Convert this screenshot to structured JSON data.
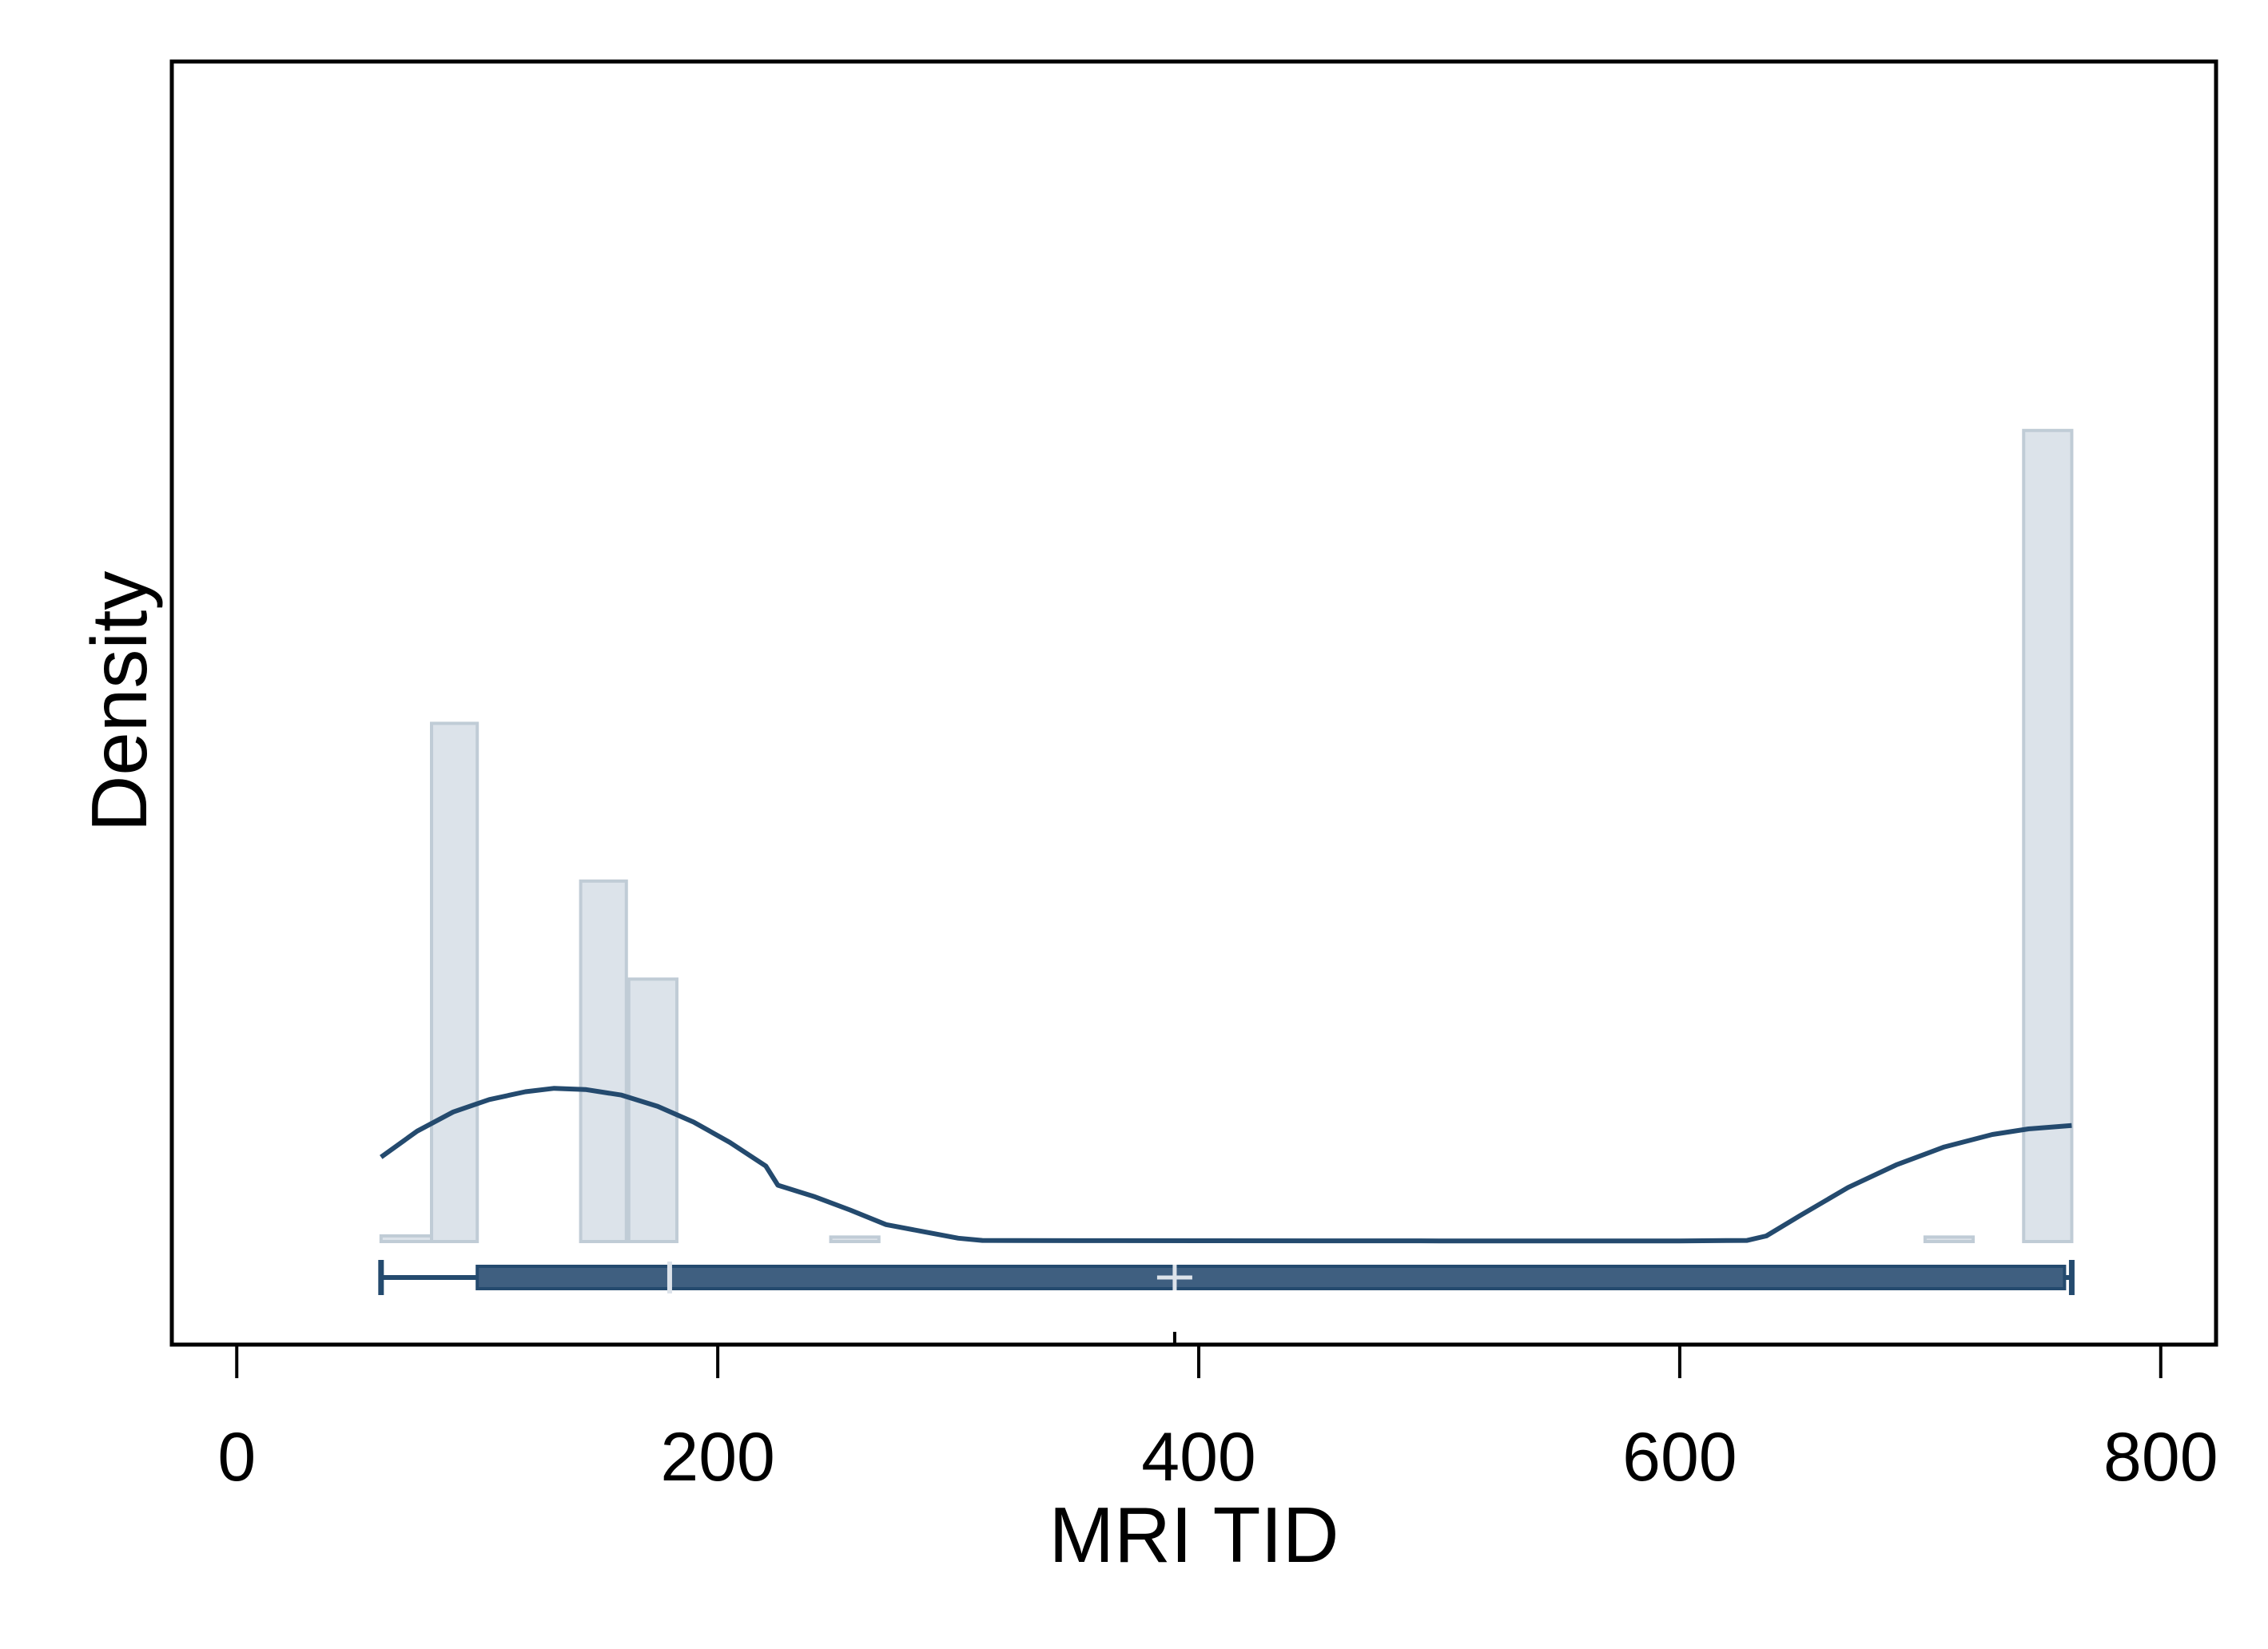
{
  "chart_data": {
    "type": "histogram",
    "xlabel": "MRI TID",
    "ylabel": "Density",
    "xlim": [
      -27,
      823
    ],
    "xticks": [
      {
        "value": 0,
        "label": "0"
      },
      {
        "value": 200,
        "label": "200"
      },
      {
        "value": 400,
        "label": "400"
      },
      {
        "value": 600,
        "label": "600"
      },
      {
        "value": 800,
        "label": "800"
      }
    ],
    "yticks_shown": false,
    "histogram": {
      "fill_color": "#dce3ea",
      "edge_color": "#c0ccd6",
      "bins": [
        {
          "start": 60,
          "end": 81,
          "height": 0.5
        },
        {
          "start": 81,
          "end": 100,
          "height": 46
        },
        {
          "start": 143,
          "end": 162,
          "height": 32
        },
        {
          "start": 163,
          "end": 183,
          "height": 23.3
        },
        {
          "start": 247,
          "end": 267,
          "height": 0.4
        },
        {
          "start": 702,
          "end": 722,
          "height": 0.4
        },
        {
          "start": 743,
          "end": 763,
          "height": 72
        }
      ]
    },
    "density_curve": {
      "color": "#244a6e",
      "points": [
        [
          60,
          7.5
        ],
        [
          75,
          9.8
        ],
        [
          90,
          11.5
        ],
        [
          105,
          12.6
        ],
        [
          120,
          13.3
        ],
        [
          132,
          13.6
        ],
        [
          145,
          13.5
        ],
        [
          160,
          13
        ],
        [
          175,
          12
        ],
        [
          190,
          10.6
        ],
        [
          205,
          8.8
        ],
        [
          220,
          6.7
        ],
        [
          225,
          5
        ],
        [
          240,
          4
        ],
        [
          255,
          2.8
        ],
        [
          270,
          1.5
        ],
        [
          285,
          0.9
        ],
        [
          300,
          0.3
        ],
        [
          310,
          0.1
        ],
        [
          350,
          0.08
        ],
        [
          400,
          0.07
        ],
        [
          500,
          0.06
        ],
        [
          600,
          0.06
        ],
        [
          628,
          0.1
        ],
        [
          636,
          0.5
        ],
        [
          650,
          2.3
        ],
        [
          670,
          4.8
        ],
        [
          690,
          6.8
        ],
        [
          710,
          8.4
        ],
        [
          730,
          9.5
        ],
        [
          745,
          10
        ],
        [
          763,
          10.3
        ]
      ]
    },
    "box_plot": {
      "color": "#3f5f80",
      "edge_color": "#244a6e",
      "median_color": "#dde3ea",
      "whisker_low": 60,
      "q1": 100,
      "median": 180,
      "mean": 390,
      "q3": 760,
      "whisker_high": 763,
      "mean_tick": 390
    }
  }
}
